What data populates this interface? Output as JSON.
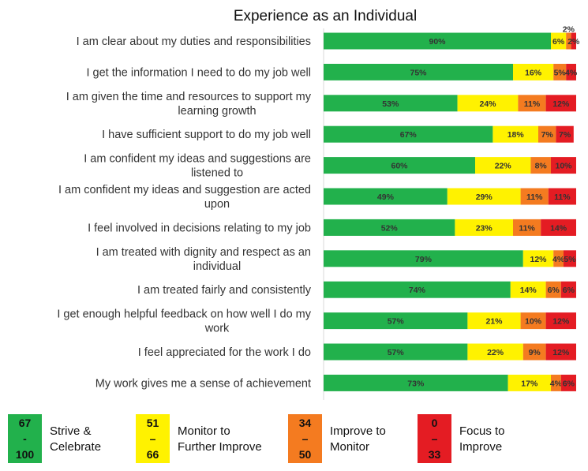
{
  "chart_data": {
    "type": "bar",
    "orientation": "horizontal",
    "stacked": true,
    "title": "Experience as an Individual",
    "xlim": [
      0,
      100
    ],
    "categories": [
      [
        "I am clear about my duties and responsibilities"
      ],
      [
        "I get the information I need to do my job well"
      ],
      [
        "I am given the time and resources to support my",
        "learning growth"
      ],
      [
        "I have sufficient support to do my job well"
      ],
      [
        "I am confident my ideas and suggestions are",
        "listened to"
      ],
      [
        "I am confident my ideas and suggestion are acted",
        "upon"
      ],
      [
        "I feel involved in decisions relating to my job"
      ],
      [
        "I am treated with dignity and respect as an",
        "individual"
      ],
      [
        "I am treated fairly and consistently"
      ],
      [
        "I get enough helpful feedback on how well I do my",
        "work"
      ],
      [
        "I feel appreciated for the work I do"
      ],
      [
        "My work gives me a sense of achievement"
      ]
    ],
    "series": [
      {
        "color": "#22b14c",
        "values": [
          90,
          75,
          53,
          67,
          60,
          49,
          52,
          79,
          74,
          57,
          57,
          73
        ]
      },
      {
        "color": "#fff200",
        "values": [
          6,
          16,
          24,
          18,
          22,
          29,
          23,
          12,
          14,
          21,
          22,
          17
        ]
      },
      {
        "color": "#f47b20",
        "values": [
          2,
          5,
          11,
          7,
          8,
          11,
          11,
          4,
          6,
          10,
          9,
          4
        ]
      },
      {
        "color": "#e41c23",
        "values": [
          2,
          4,
          12,
          7,
          10,
          11,
          14,
          5,
          6,
          12,
          12,
          6
        ]
      }
    ],
    "grid": false
  },
  "legend": [
    {
      "range_top": "67",
      "range_sep": "-",
      "range_bottom": "100",
      "label_line1": "Strive &",
      "label_line2": "Celebrate",
      "color": "#22b14c"
    },
    {
      "range_top": "51",
      "range_sep": "–",
      "range_bottom": "66",
      "label_line1": "Monitor to",
      "label_line2": "Further Improve",
      "color": "#fff200"
    },
    {
      "range_top": "34",
      "range_sep": "–",
      "range_bottom": "50",
      "label_line1": "Improve to",
      "label_line2": "Monitor",
      "color": "#f47b20"
    },
    {
      "range_top": "0",
      "range_sep": "–",
      "range_bottom": "33",
      "label_line1": "Focus to",
      "label_line2": "Improve",
      "color": "#e41c23"
    }
  ]
}
